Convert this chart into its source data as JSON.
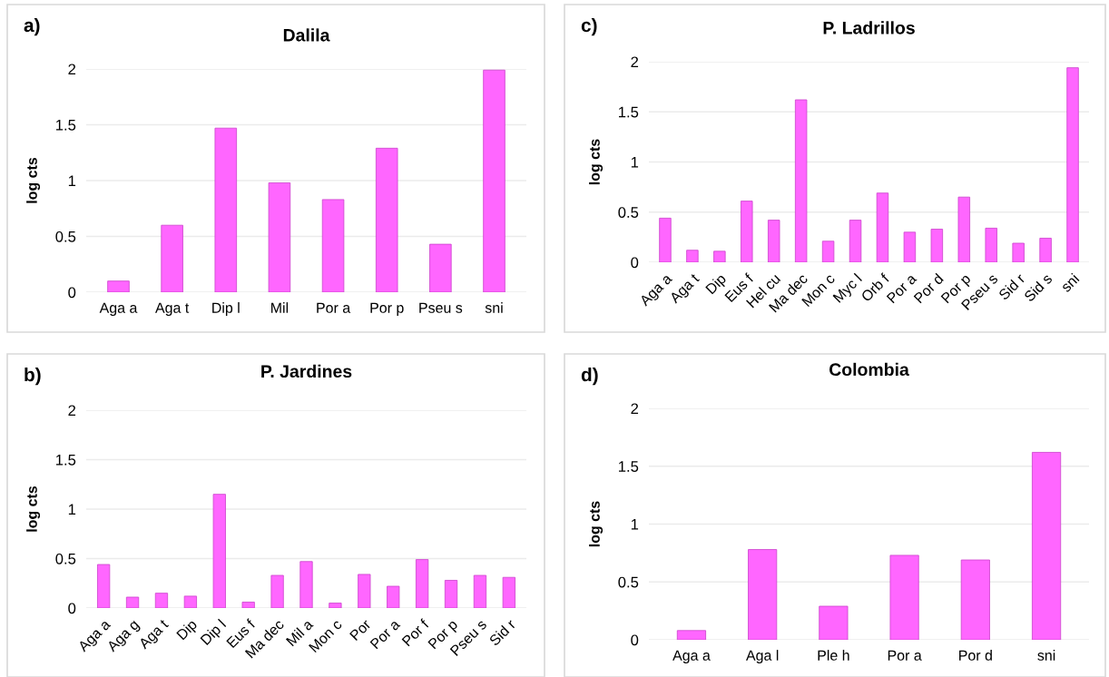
{
  "chart_data": [
    {
      "type": "bar",
      "title": "Dalila",
      "ylabel": "log cts",
      "annotations": [
        "a)"
      ],
      "categories": [
        "Aga a",
        "Aga t",
        "Dip l",
        "Mil",
        "Por a",
        "Por p",
        "Pseu s",
        "sni"
      ],
      "values": [
        0.1,
        0.6,
        1.47,
        0.98,
        0.83,
        1.29,
        0.43,
        1.99
      ],
      "color": "#ff66ff",
      "ylim": [
        0,
        2
      ],
      "yticks": [
        0,
        0.5,
        1,
        1.5,
        2
      ],
      "grid": "y"
    },
    {
      "type": "bar",
      "title": "P. Ladrillos",
      "ylabel": "log cts",
      "annotations": [
        "c)"
      ],
      "categories": [
        "Aga a",
        "Aga t",
        "Dip",
        "Eus f",
        "Hel cu",
        "Ma dec",
        "Mon c",
        "Myc l",
        "Orb f",
        "Por a",
        "Por d",
        "Por p",
        "Pseu s",
        "Sid r",
        "Sid s",
        "sni"
      ],
      "values": [
        0.44,
        0.12,
        0.11,
        0.61,
        0.42,
        1.62,
        0.21,
        0.42,
        0.69,
        0.3,
        0.33,
        0.65,
        0.34,
        0.19,
        0.24,
        1.94
      ],
      "color": "#ff66ff",
      "ylim": [
        0,
        2
      ],
      "yticks": [
        0,
        0.5,
        1,
        1.5,
        2
      ],
      "grid": "y"
    },
    {
      "type": "bar",
      "title": "P. Jardines",
      "ylabel": "log cts",
      "annotations": [
        "b)"
      ],
      "categories": [
        "Aga a",
        "Aga g",
        "Aga t",
        "Dip",
        "Dip l",
        "Eus f",
        "Ma dec",
        "Mil a",
        "Mon c",
        "Por",
        "Por a",
        "Por f",
        "Por p",
        "Pseu s",
        "Sid r"
      ],
      "values": [
        0.44,
        0.11,
        0.15,
        0.12,
        1.15,
        0.06,
        0.33,
        0.47,
        0.05,
        0.34,
        0.22,
        0.49,
        0.28,
        0.33,
        0.31
      ],
      "color": "#ff66ff",
      "ylim": [
        0,
        2
      ],
      "yticks": [
        0,
        0.5,
        1,
        1.5,
        2
      ],
      "grid": "y"
    },
    {
      "type": "bar",
      "title": "Colombia",
      "ylabel": "log cts",
      "annotations": [
        "d)"
      ],
      "categories": [
        "Aga a",
        "Aga l",
        "Ple h",
        "Por a",
        "Por d",
        "sni"
      ],
      "values": [
        0.08,
        0.78,
        0.29,
        0.73,
        0.69,
        1.62
      ],
      "color": "#ff66ff",
      "ylim": [
        0,
        2
      ],
      "yticks": [
        0,
        0.5,
        1,
        1.5,
        2
      ],
      "grid": "y"
    }
  ]
}
